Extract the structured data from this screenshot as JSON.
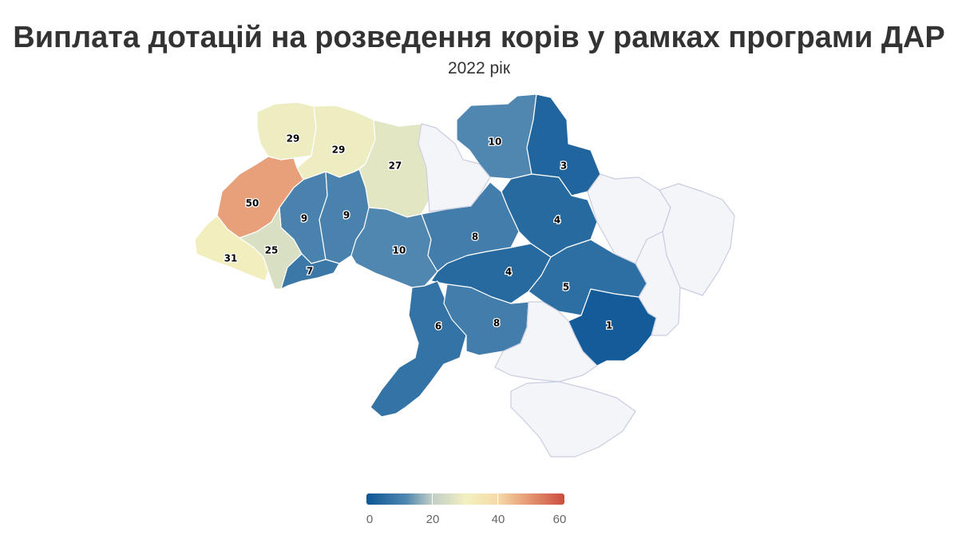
{
  "title": "Виплата дотацій на розведення корів у рамках програми ДАР",
  "subtitle": "2022 рік",
  "colors": {
    "scale": [
      "#0c5696",
      "#4f87b0",
      "#c0cdc6",
      "#f2f0c0",
      "#f6dba8",
      "#e8a07a",
      "#cb4c3e"
    ],
    "nodata": "#f4f5f9"
  },
  "legend": {
    "min": 0,
    "max": 60,
    "ticks": [
      "0",
      "20",
      "40",
      "60"
    ]
  },
  "regions": [
    {
      "id": "volyn",
      "value": 29
    },
    {
      "id": "rivne",
      "value": 29
    },
    {
      "id": "zhytomyr",
      "value": 27
    },
    {
      "id": "lviv",
      "value": 50
    },
    {
      "id": "ternopil",
      "value": 9
    },
    {
      "id": "khmelnytskyi",
      "value": 9
    },
    {
      "id": "zakarpattia",
      "value": 31
    },
    {
      "id": "ivano-frankivsk",
      "value": 25
    },
    {
      "id": "chernivtsi",
      "value": 7
    },
    {
      "id": "vinnytsia",
      "value": 10
    },
    {
      "id": "chernihiv",
      "value": 10
    },
    {
      "id": "sumy",
      "value": 3
    },
    {
      "id": "poltava",
      "value": 4
    },
    {
      "id": "cherkasy",
      "value": 8
    },
    {
      "id": "kirovohrad",
      "value": 4
    },
    {
      "id": "dnipropetrovsk",
      "value": 5
    },
    {
      "id": "zaporizhzhia",
      "value": 1
    },
    {
      "id": "odesa",
      "value": 6
    },
    {
      "id": "mykolaiv",
      "value": 8
    },
    {
      "id": "kyiv",
      "value": null
    },
    {
      "id": "kharkiv",
      "value": null
    },
    {
      "id": "luhansk",
      "value": null
    },
    {
      "id": "donetsk",
      "value": null
    },
    {
      "id": "kherson",
      "value": null
    },
    {
      "id": "crimea",
      "value": null
    }
  ]
}
